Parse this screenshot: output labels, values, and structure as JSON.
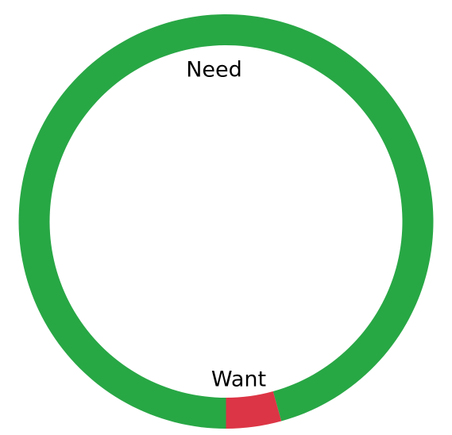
{
  "chart_data": {
    "type": "pie",
    "style": "donut",
    "categories": [
      "Need",
      "Want"
    ],
    "values": [
      95.7,
      4.3
    ],
    "colors": [
      "#28a745",
      "#dc3545"
    ],
    "title": "",
    "legend": "none"
  }
}
